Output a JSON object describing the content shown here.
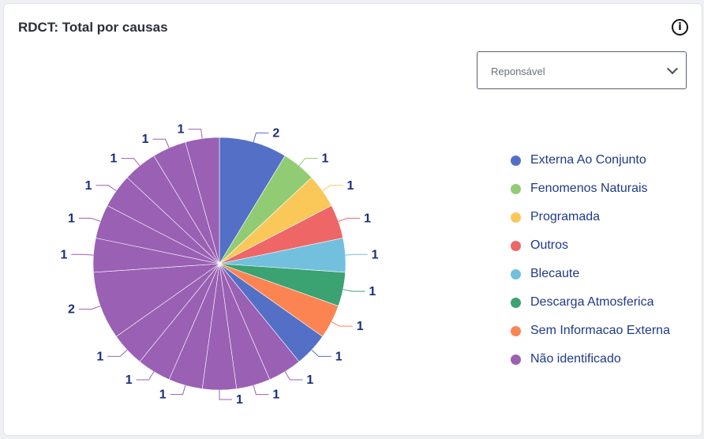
{
  "header": {
    "title": "RDCT: Total por causas",
    "info_icon": "info-circle-icon"
  },
  "filter": {
    "placeholder": "Reponsável"
  },
  "chart_data": {
    "type": "pie",
    "title": "RDCT: Total por causas",
    "legend": [
      {
        "name": "Externa Ao Conjunto",
        "color": "#5470c6"
      },
      {
        "name": "Fenomenos Naturais",
        "color": "#91cc75"
      },
      {
        "name": "Programada",
        "color": "#fac858"
      },
      {
        "name": "Outros",
        "color": "#ee6666"
      },
      {
        "name": "Blecaute",
        "color": "#73c0de"
      },
      {
        "name": "Descarga Atmosferica",
        "color": "#3ba272"
      },
      {
        "name": "Sem Informacao Externa",
        "color": "#fc8452"
      },
      {
        "name": "Não identificado",
        "color": "#9a60b4"
      }
    ],
    "legend_position": "right",
    "slices": [
      {
        "value": 2,
        "color": "#5470c6"
      },
      {
        "value": 1,
        "color": "#91cc75"
      },
      {
        "value": 1,
        "color": "#fac858"
      },
      {
        "value": 1,
        "color": "#ee6666"
      },
      {
        "value": 1,
        "color": "#73c0de"
      },
      {
        "value": 1,
        "color": "#3ba272"
      },
      {
        "value": 1,
        "color": "#fc8452"
      },
      {
        "value": 1,
        "color": "#5470c6"
      },
      {
        "value": 1,
        "color": "#9a60b4"
      },
      {
        "value": 1,
        "color": "#9a60b4"
      },
      {
        "value": 1,
        "color": "#9a60b4"
      },
      {
        "value": 1,
        "color": "#9a60b4"
      },
      {
        "value": 1,
        "color": "#9a60b4"
      },
      {
        "value": 1,
        "color": "#9a60b4"
      },
      {
        "value": 2,
        "color": "#9a60b4"
      },
      {
        "value": 1,
        "color": "#9a60b4"
      },
      {
        "value": 1,
        "color": "#9a60b4"
      },
      {
        "value": 1,
        "color": "#9a60b4"
      },
      {
        "value": 1,
        "color": "#9a60b4"
      },
      {
        "value": 1,
        "color": "#9a60b4"
      },
      {
        "value": 1,
        "color": "#9a60b4"
      }
    ]
  }
}
